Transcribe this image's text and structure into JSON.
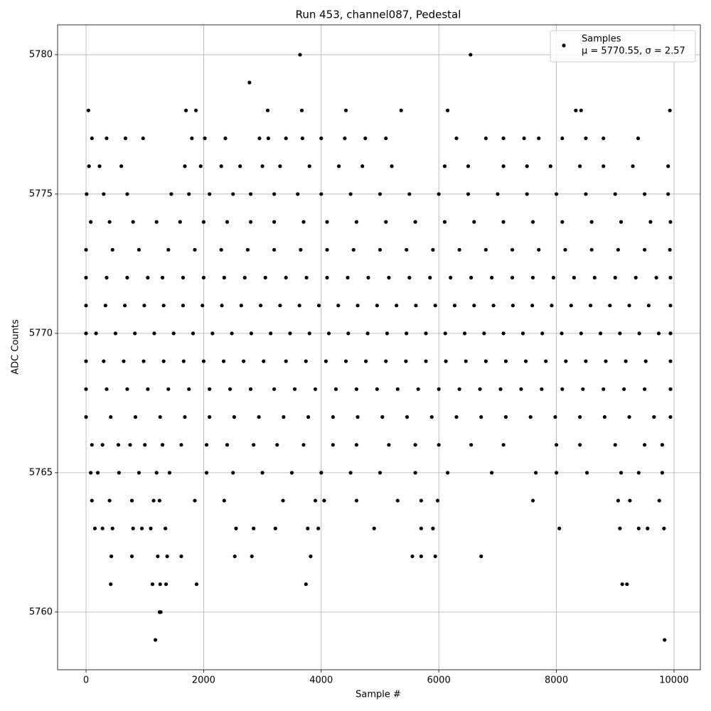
{
  "chart_data": {
    "type": "scatter",
    "title": "Run 453, channel087, Pedestal",
    "xlabel": "Sample #",
    "ylabel": "ADC Counts",
    "xlim": [
      -484,
      10448
    ],
    "ylim": [
      5757.93,
      5781.07
    ],
    "xticks": [
      0,
      2000,
      4000,
      6000,
      8000,
      10000
    ],
    "yticks": [
      5760,
      5765,
      5770,
      5775,
      5780
    ],
    "grid": true,
    "legend_position": "upper right",
    "legend_stats": "μ = 5770.55, σ = 2.57",
    "series": [
      {
        "name": "Samples",
        "color": "#000000",
        "x": [
          3640,
          6540,
          2780,
          40,
          1700,
          1870,
          3090,
          3670,
          4420,
          5360,
          6150,
          8330,
          8420,
          9930,
          100,
          350,
          670,
          970,
          1800,
          2020,
          2370,
          2950,
          3100,
          3400,
          3680,
          4000,
          4400,
          4750,
          5100,
          6300,
          6800,
          7100,
          7450,
          7700,
          8100,
          8500,
          8800,
          9390,
          50,
          230,
          600,
          1680,
          1950,
          2300,
          2620,
          3000,
          3300,
          3800,
          4300,
          4700,
          5200,
          6100,
          6500,
          7100,
          7500,
          7900,
          8400,
          8800,
          9300,
          9900,
          10,
          300,
          700,
          1450,
          1750,
          2100,
          2500,
          2800,
          3200,
          3600,
          4000,
          4500,
          5000,
          5500,
          6000,
          6500,
          7000,
          7500,
          8000,
          8500,
          9000,
          9500,
          9900,
          80,
          400,
          800,
          1200,
          1600,
          2000,
          2400,
          2800,
          3200,
          3700,
          4100,
          4600,
          5100,
          5600,
          6100,
          6600,
          7100,
          7600,
          8100,
          8600,
          9100,
          9600,
          9940,
          0,
          450,
          900,
          1400,
          1850,
          2300,
          2750,
          3200,
          3650,
          4100,
          4550,
          5000,
          5450,
          5900,
          6350,
          6800,
          7250,
          7700,
          8150,
          8600,
          9050,
          9500,
          9930,
          0,
          350,
          700,
          1050,
          1300,
          1650,
          2000,
          2350,
          2700,
          3050,
          3400,
          3750,
          4100,
          4450,
          4800,
          5150,
          5500,
          5850,
          6200,
          6550,
          6900,
          7250,
          7600,
          7950,
          8300,
          8650,
          9000,
          9350,
          9700,
          9940,
          0,
          330,
          660,
          990,
          1320,
          1650,
          1980,
          2310,
          2640,
          2970,
          3300,
          3630,
          3960,
          4290,
          4620,
          4950,
          5280,
          5610,
          5940,
          6270,
          6600,
          6930,
          7260,
          7590,
          7920,
          8250,
          8580,
          8910,
          9240,
          9570,
          9940,
          0,
          170,
          500,
          830,
          1160,
          1490,
          1820,
          2150,
          2480,
          2810,
          3140,
          3470,
          3800,
          4130,
          4460,
          4790,
          5120,
          5450,
          5780,
          6110,
          6440,
          6770,
          7100,
          7430,
          7760,
          8090,
          8420,
          8750,
          9080,
          9410,
          9740,
          9940,
          0,
          300,
          640,
          980,
          1320,
          1660,
          2000,
          2340,
          2680,
          3020,
          3400,
          3740,
          4080,
          4420,
          4760,
          5100,
          5440,
          5780,
          6120,
          6460,
          6800,
          7140,
          7480,
          7820,
          8160,
          8500,
          8840,
          9180,
          9520,
          9940,
          0,
          350,
          700,
          1050,
          1400,
          1750,
          2100,
          2450,
          2800,
          3200,
          3550,
          3900,
          4250,
          4600,
          4950,
          5300,
          5650,
          6000,
          6350,
          6700,
          7050,
          7400,
          7750,
          8100,
          8450,
          8800,
          9150,
          9500,
          9940,
          0,
          420,
          840,
          1260,
          1680,
          2100,
          2520,
          2940,
          3360,
          3780,
          4200,
          4620,
          5040,
          5460,
          5880,
          6300,
          6720,
          7140,
          7560,
          7980,
          8400,
          8820,
          9240,
          9660,
          9940,
          100,
          280,
          550,
          750,
          1000,
          1300,
          1620,
          2050,
          2400,
          2850,
          3250,
          3700,
          4200,
          4600,
          5150,
          5600,
          6000,
          6550,
          7100,
          8000,
          8400,
          9000,
          9500,
          9800,
          80,
          200,
          560,
          900,
          1200,
          1420,
          2050,
          2500,
          3000,
          3500,
          4000,
          4500,
          5000,
          5600,
          6150,
          6900,
          7650,
          8000,
          8520,
          9100,
          9400,
          9800,
          100,
          400,
          780,
          1150,
          1250,
          1850,
          2350,
          3350,
          3900,
          4050,
          4600,
          5300,
          5700,
          5980,
          7600,
          9050,
          9250,
          9750,
          150,
          280,
          450,
          800,
          950,
          1100,
          1350,
          2550,
          2850,
          3220,
          3770,
          3950,
          4900,
          5700,
          5900,
          8050,
          9080,
          9400,
          9550,
          9830,
          430,
          780,
          1220,
          1380,
          1620,
          2530,
          2820,
          3820,
          5550,
          5700,
          5940,
          6720,
          420,
          1130,
          1260,
          1360,
          1880,
          3740,
          9120,
          9200,
          1250,
          1270,
          1180,
          9840
        ],
        "values": [
          5780,
          5780,
          5779,
          5778,
          5778,
          5778,
          5778,
          5778,
          5778,
          5778,
          5778,
          5778,
          5778,
          5778,
          5777,
          5777,
          5777,
          5777,
          5777,
          5777,
          5777,
          5777,
          5777,
          5777,
          5777,
          5777,
          5777,
          5777,
          5777,
          5777,
          5777,
          5777,
          5777,
          5777,
          5777,
          5777,
          5777,
          5777,
          5776,
          5776,
          5776,
          5776,
          5776,
          5776,
          5776,
          5776,
          5776,
          5776,
          5776,
          5776,
          5776,
          5776,
          5776,
          5776,
          5776,
          5776,
          5776,
          5776,
          5776,
          5776,
          5775,
          5775,
          5775,
          5775,
          5775,
          5775,
          5775,
          5775,
          5775,
          5775,
          5775,
          5775,
          5775,
          5775,
          5775,
          5775,
          5775,
          5775,
          5775,
          5775,
          5775,
          5775,
          5775,
          5774,
          5774,
          5774,
          5774,
          5774,
          5774,
          5774,
          5774,
          5774,
          5774,
          5774,
          5774,
          5774,
          5774,
          5774,
          5774,
          5774,
          5774,
          5774,
          5774,
          5774,
          5774,
          5774,
          5773,
          5773,
          5773,
          5773,
          5773,
          5773,
          5773,
          5773,
          5773,
          5773,
          5773,
          5773,
          5773,
          5773,
          5773,
          5773,
          5773,
          5773,
          5773,
          5773,
          5773,
          5773,
          5773,
          5772,
          5772,
          5772,
          5772,
          5772,
          5772,
          5772,
          5772,
          5772,
          5772,
          5772,
          5772,
          5772,
          5772,
          5772,
          5772,
          5772,
          5772,
          5772,
          5772,
          5772,
          5772,
          5772,
          5772,
          5772,
          5772,
          5772,
          5772,
          5772,
          5772,
          5771,
          5771,
          5771,
          5771,
          5771,
          5771,
          5771,
          5771,
          5771,
          5771,
          5771,
          5771,
          5771,
          5771,
          5771,
          5771,
          5771,
          5771,
          5771,
          5771,
          5771,
          5771,
          5771,
          5771,
          5771,
          5771,
          5771,
          5771,
          5771,
          5771,
          5771,
          5770,
          5770,
          5770,
          5770,
          5770,
          5770,
          5770,
          5770,
          5770,
          5770,
          5770,
          5770,
          5770,
          5770,
          5770,
          5770,
          5770,
          5770,
          5770,
          5770,
          5770,
          5770,
          5770,
          5770,
          5770,
          5770,
          5770,
          5770,
          5770,
          5770,
          5770,
          5770,
          5769,
          5769,
          5769,
          5769,
          5769,
          5769,
          5769,
          5769,
          5769,
          5769,
          5769,
          5769,
          5769,
          5769,
          5769,
          5769,
          5769,
          5769,
          5769,
          5769,
          5769,
          5769,
          5769,
          5769,
          5769,
          5769,
          5769,
          5769,
          5769,
          5769,
          5768,
          5768,
          5768,
          5768,
          5768,
          5768,
          5768,
          5768,
          5768,
          5768,
          5768,
          5768,
          5768,
          5768,
          5768,
          5768,
          5768,
          5768,
          5768,
          5768,
          5768,
          5768,
          5768,
          5768,
          5768,
          5768,
          5768,
          5768,
          5768,
          5767,
          5767,
          5767,
          5767,
          5767,
          5767,
          5767,
          5767,
          5767,
          5767,
          5767,
          5767,
          5767,
          5767,
          5767,
          5767,
          5767,
          5767,
          5767,
          5767,
          5767,
          5767,
          5767,
          5767,
          5767,
          5766,
          5766,
          5766,
          5766,
          5766,
          5766,
          5766,
          5766,
          5766,
          5766,
          5766,
          5766,
          5766,
          5766,
          5766,
          5766,
          5766,
          5766,
          5766,
          5766,
          5766,
          5766,
          5766,
          5766,
          5765,
          5765,
          5765,
          5765,
          5765,
          5765,
          5765,
          5765,
          5765,
          5765,
          5765,
          5765,
          5765,
          5765,
          5765,
          5765,
          5765,
          5765,
          5765,
          5765,
          5765,
          5765,
          5764,
          5764,
          5764,
          5764,
          5764,
          5764,
          5764,
          5764,
          5764,
          5764,
          5764,
          5764,
          5764,
          5764,
          5764,
          5764,
          5764,
          5764,
          5763,
          5763,
          5763,
          5763,
          5763,
          5763,
          5763,
          5763,
          5763,
          5763,
          5763,
          5763,
          5763,
          5763,
          5763,
          5763,
          5763,
          5763,
          5763,
          5763,
          5762,
          5762,
          5762,
          5762,
          5762,
          5762,
          5762,
          5762,
          5762,
          5762,
          5762,
          5762,
          5761,
          5761,
          5761,
          5761,
          5761,
          5761,
          5761,
          5761,
          5760,
          5760,
          5759,
          5759
        ]
      }
    ]
  }
}
